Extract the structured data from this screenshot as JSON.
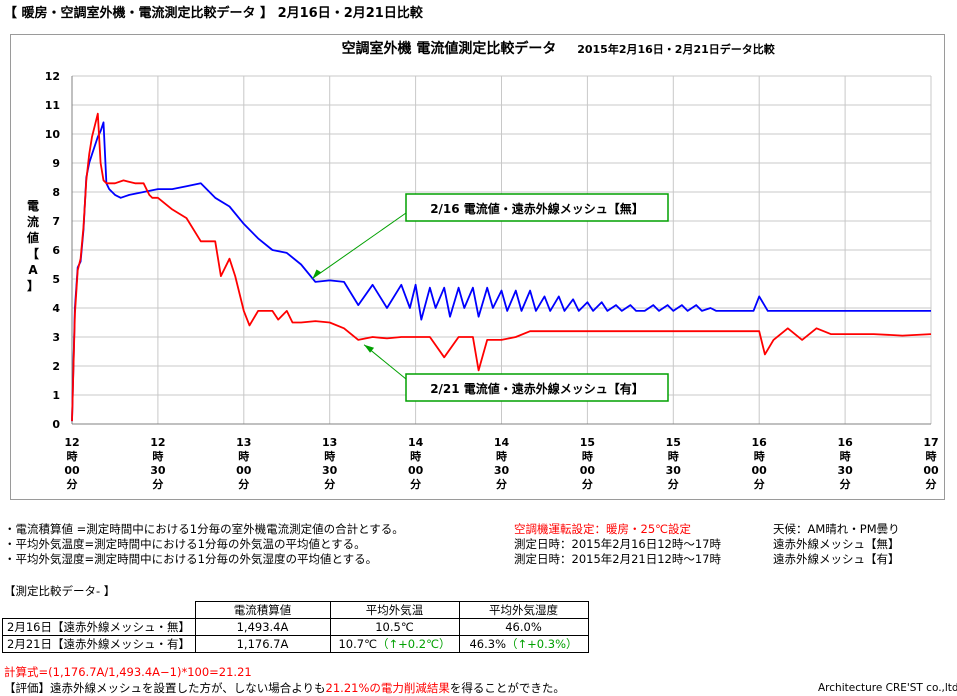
{
  "header": "【 暖房・空調室外機・電流測定比較データ 】 2月16日・2月21日比較",
  "chart_data": {
    "type": "line",
    "title": "空調室外機 電流値測定比較データ",
    "subtitle": "2015年2月16日・2月21日データ比較",
    "ylabel": "電流値【A】",
    "ylim": [
      0,
      12
    ],
    "yticks": [
      "0",
      "1",
      "2",
      "3",
      "4",
      "5",
      "6",
      "7",
      "8",
      "9",
      "10",
      "11",
      "12"
    ],
    "xticks": [
      [
        "12",
        "時",
        "00",
        "分"
      ],
      [
        "12",
        "時",
        "30",
        "分"
      ],
      [
        "13",
        "時",
        "00",
        "分"
      ],
      [
        "13",
        "時",
        "30",
        "分"
      ],
      [
        "14",
        "時",
        "00",
        "分"
      ],
      [
        "14",
        "時",
        "30",
        "分"
      ],
      [
        "15",
        "時",
        "00",
        "分"
      ],
      [
        "15",
        "時",
        "30",
        "分"
      ],
      [
        "16",
        "時",
        "00",
        "分"
      ],
      [
        "16",
        "時",
        "30",
        "分"
      ],
      [
        "17",
        "時",
        "00",
        "分"
      ]
    ],
    "xlim_minutes": [
      0,
      300
    ],
    "grid": true,
    "series": [
      {
        "name": "2/16 電流値・遠赤外線メッシュ【無】",
        "color": "#0000ff",
        "x": [
          0,
          1,
          2,
          3,
          4,
          5,
          6,
          7,
          8,
          9,
          10,
          11,
          12,
          13,
          14,
          15,
          17,
          20,
          25,
          30,
          35,
          40,
          45,
          50,
          55,
          60,
          65,
          70,
          75,
          80,
          85,
          90,
          95,
          100,
          105,
          110,
          115,
          118,
          120,
          122,
          125,
          127,
          130,
          132,
          135,
          137,
          140,
          142,
          145,
          147,
          150,
          152,
          155,
          157,
          160,
          162,
          165,
          167,
          170,
          172,
          175,
          177,
          180,
          182,
          185,
          187,
          190,
          192,
          195,
          197,
          200,
          203,
          205,
          208,
          210,
          213,
          215,
          218,
          220,
          223,
          225,
          228,
          230,
          233,
          235,
          238,
          240,
          243,
          245,
          248,
          250,
          253,
          255,
          258,
          260,
          263,
          265,
          268,
          270,
          273,
          275,
          280,
          290,
          300
        ],
        "values": [
          0.1,
          4.0,
          5.4,
          5.6,
          6.7,
          8.5,
          9.0,
          9.3,
          9.6,
          9.9,
          10.1,
          10.4,
          8.3,
          8.1,
          8.0,
          7.9,
          7.8,
          7.9,
          8.0,
          8.1,
          8.1,
          8.2,
          8.3,
          7.8,
          7.5,
          6.9,
          6.4,
          6.0,
          5.9,
          5.5,
          4.9,
          4.95,
          4.9,
          4.1,
          4.8,
          4.0,
          4.8,
          4.0,
          4.8,
          3.6,
          4.7,
          4.0,
          4.7,
          3.7,
          4.7,
          4.0,
          4.7,
          3.7,
          4.7,
          4.0,
          4.6,
          3.9,
          4.6,
          3.9,
          4.6,
          3.9,
          4.4,
          3.9,
          4.4,
          3.9,
          4.3,
          3.9,
          4.2,
          3.9,
          4.2,
          3.9,
          4.1,
          3.9,
          4.1,
          3.9,
          3.9,
          4.1,
          3.9,
          4.1,
          3.9,
          4.1,
          3.9,
          4.1,
          3.9,
          4.0,
          3.9,
          3.9,
          3.9,
          3.9,
          3.9,
          3.9,
          4.4,
          3.9,
          3.9,
          3.9,
          3.9,
          3.9,
          3.9,
          3.9,
          3.9,
          3.9,
          3.9,
          3.9,
          3.9,
          3.9,
          3.9,
          3.9,
          3.9,
          3.9
        ]
      },
      {
        "name": "2/21 電流値・遠赤外線メッシュ【有】",
        "color": "#ff0000",
        "x": [
          0,
          1,
          2,
          3,
          4,
          5,
          6,
          7,
          8,
          9,
          10,
          11,
          12,
          13,
          15,
          18,
          20,
          22,
          25,
          27,
          28,
          30,
          35,
          40,
          45,
          50,
          52,
          55,
          57,
          60,
          62,
          65,
          67,
          70,
          72,
          75,
          77,
          80,
          85,
          90,
          95,
          100,
          105,
          110,
          115,
          120,
          125,
          130,
          135,
          140,
          142,
          145,
          150,
          155,
          160,
          165,
          170,
          175,
          180,
          190,
          200,
          210,
          220,
          230,
          240,
          242,
          245,
          250,
          255,
          260,
          265,
          270,
          280,
          290,
          300
        ],
        "values": [
          0.1,
          3.8,
          5.3,
          5.7,
          6.8,
          8.4,
          9.3,
          9.9,
          10.3,
          10.7,
          9.0,
          8.4,
          8.3,
          8.3,
          8.3,
          8.4,
          8.35,
          8.3,
          8.3,
          7.9,
          7.8,
          7.8,
          7.4,
          7.1,
          6.3,
          6.3,
          5.1,
          5.7,
          5.1,
          3.9,
          3.4,
          3.9,
          3.9,
          3.9,
          3.6,
          3.9,
          3.5,
          3.5,
          3.55,
          3.5,
          3.3,
          2.9,
          3.0,
          2.95,
          3.0,
          3.0,
          3.0,
          2.3,
          3.0,
          3.0,
          1.85,
          2.9,
          2.9,
          3.0,
          3.2,
          3.2,
          3.2,
          3.2,
          3.2,
          3.2,
          3.2,
          3.2,
          3.2,
          3.2,
          3.2,
          2.4,
          2.9,
          3.3,
          2.9,
          3.3,
          3.1,
          3.1,
          3.1,
          3.05,
          3.1
        ]
      }
    ],
    "annotations": [
      "2/16 電流値・遠赤外線メッシュ【無】",
      "2/21 電流値・遠赤外線メッシュ【有】"
    ]
  },
  "notes": {
    "left": [
      "・電流積算値 =測定時間中における1分毎の室外機電流測定値の合計とする。",
      "・平均外気温度=測定時間中における1分毎の外気温の平均値とする。",
      "・平均外気湿度=測定時間中における1分毎の外気湿度の平均値とする。"
    ],
    "settings": "空調機運転設定：暖房・25℃設定",
    "weather": "天候：AM晴れ・PM曇り",
    "date1": "測定日時：2015年2月16日12時～17時",
    "date2": "測定日時：2015年2月21日12時～17時",
    "mesh1": "遠赤外線メッシュ【無】",
    "mesh2": "遠赤外線メッシュ【有】"
  },
  "table": {
    "caption": "【測定比較データ- 】",
    "headers": [
      "電流積算値",
      "平均外気温",
      "平均外気湿度"
    ],
    "rows": [
      {
        "label": "2月16日【遠赤外線メッシュ・無】",
        "current": "1,493.4A",
        "temp": "10.5℃",
        "temp_diff": "",
        "hum": "46.0%",
        "hum_diff": ""
      },
      {
        "label": "2月21日【遠赤外線メッシュ・有】",
        "current": "1,176.7A",
        "temp": "10.7℃",
        "temp_diff": "（↑+0.2℃）",
        "hum": "46.3%",
        "hum_diff": "（↑+0.3%）"
      }
    ]
  },
  "formula": "計算式=(1,176.7A/1,493.4A−1)*100=21.21",
  "evaluation": {
    "prefix": "【評価】遠赤外線メッシュを設置した方が、しない場合よりも",
    "highlight": "21.21%の電力削減結果",
    "suffix": "を得ることができた。"
  },
  "company": "Architecture CRE'ST co.,ltd",
  "colors": {
    "blue": "#0000ff",
    "red": "#ff0000",
    "green": "#00a000",
    "grid": "#c8c8c8"
  }
}
